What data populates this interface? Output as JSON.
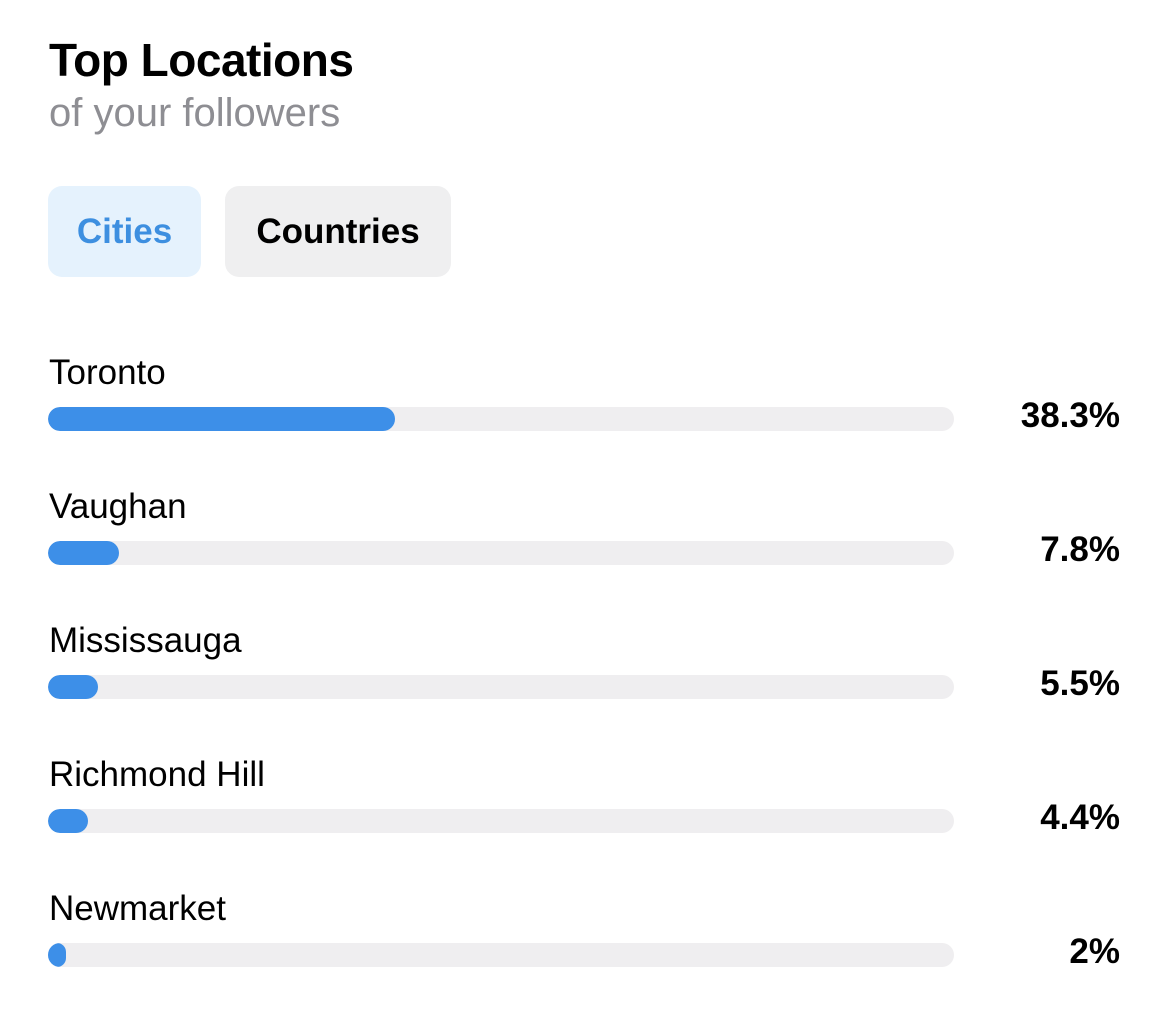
{
  "header": {
    "title": "Top Locations",
    "subtitle": "of your followers"
  },
  "tabs": [
    {
      "label": "Cities",
      "selected": true
    },
    {
      "label": "Countries",
      "selected": false
    }
  ],
  "colors": {
    "accent": "#3d8fe8",
    "selected_tab_bg": "#e5f2fd",
    "track": "#efeef0"
  },
  "locations": [
    {
      "name": "Toronto",
      "percent_label": "38.3%",
      "percent": 38.3
    },
    {
      "name": "Vaughan",
      "percent_label": "7.8%",
      "percent": 7.8
    },
    {
      "name": "Mississauga",
      "percent_label": "5.5%",
      "percent": 5.5
    },
    {
      "name": "Richmond Hill",
      "percent_label": "4.4%",
      "percent": 4.4
    },
    {
      "name": "Newmarket",
      "percent_label": "2%",
      "percent": 2
    }
  ]
}
